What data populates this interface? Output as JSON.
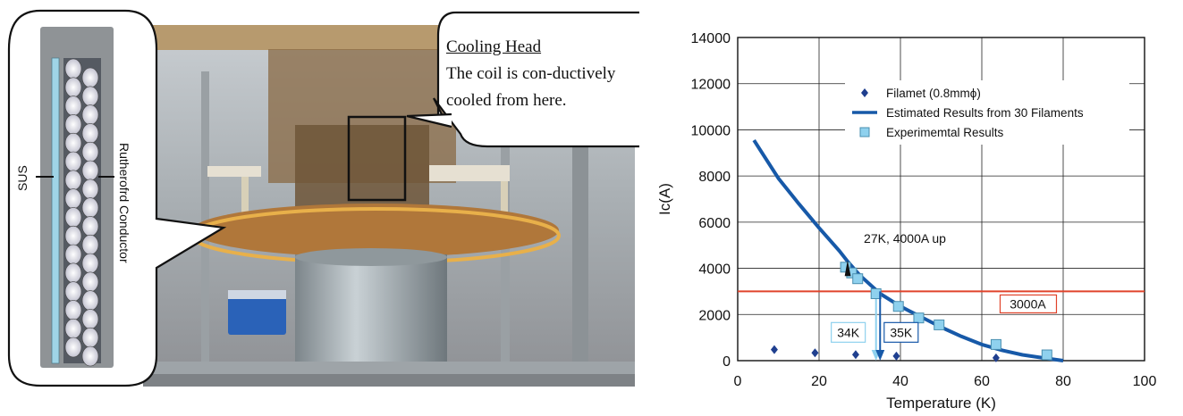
{
  "photo": {
    "callout_title": "Cooling Head",
    "callout_body": "The coil is con-ductively cooled from here.",
    "inset_label_sus": "SUS",
    "inset_label_rutherford": "Rutherofrd Conductor"
  },
  "chart_data": {
    "type": "line",
    "title": "",
    "xlabel": "Temperature (K)",
    "ylabel": "Ic(A)",
    "xlim": [
      0,
      100
    ],
    "ylim": [
      0,
      14000
    ],
    "x_ticks": [
      0,
      20,
      40,
      60,
      80,
      100
    ],
    "y_ticks": [
      0,
      2000,
      4000,
      6000,
      8000,
      10000,
      12000,
      14000
    ],
    "grid": true,
    "legend_position": "top-right",
    "series": [
      {
        "name": "Filamet (0.8mmϕ)",
        "kind": "scatter",
        "marker": "diamond",
        "color": "#1f3f8f",
        "x": [
          9,
          19,
          29,
          39,
          63.5
        ],
        "y": [
          480,
          340,
          260,
          200,
          120
        ]
      },
      {
        "name": "Estimated Results from 30 Filaments",
        "kind": "line",
        "color": "#1759a8",
        "x": [
          4,
          6,
          10,
          15,
          20,
          25,
          27,
          30,
          35,
          40,
          45,
          50,
          55,
          60,
          65,
          70,
          75,
          80
        ],
        "y": [
          9550,
          9000,
          7900,
          6800,
          5750,
          4750,
          4300,
          3700,
          2900,
          2350,
          1900,
          1450,
          1050,
          700,
          450,
          250,
          120,
          0
        ]
      },
      {
        "name": "Experimemtal Results",
        "kind": "scatter",
        "marker": "square",
        "color": "#8fd1ee",
        "x": [
          26.5,
          28,
          29.5,
          34,
          39.5,
          44.5,
          49.5,
          63.5,
          76
        ],
        "y": [
          4050,
          3800,
          3550,
          2900,
          2350,
          1850,
          1550,
          700,
          250
        ]
      }
    ],
    "hline": {
      "y": 3000,
      "label": "3000A",
      "color": "#e0432b"
    },
    "annotations": [
      {
        "text": "27K, 4000A  up",
        "x": 27,
        "y": 4000
      },
      {
        "text": "34K",
        "x": 34,
        "y": 0
      },
      {
        "text": "35K",
        "x": 35,
        "y": 0
      }
    ]
  }
}
